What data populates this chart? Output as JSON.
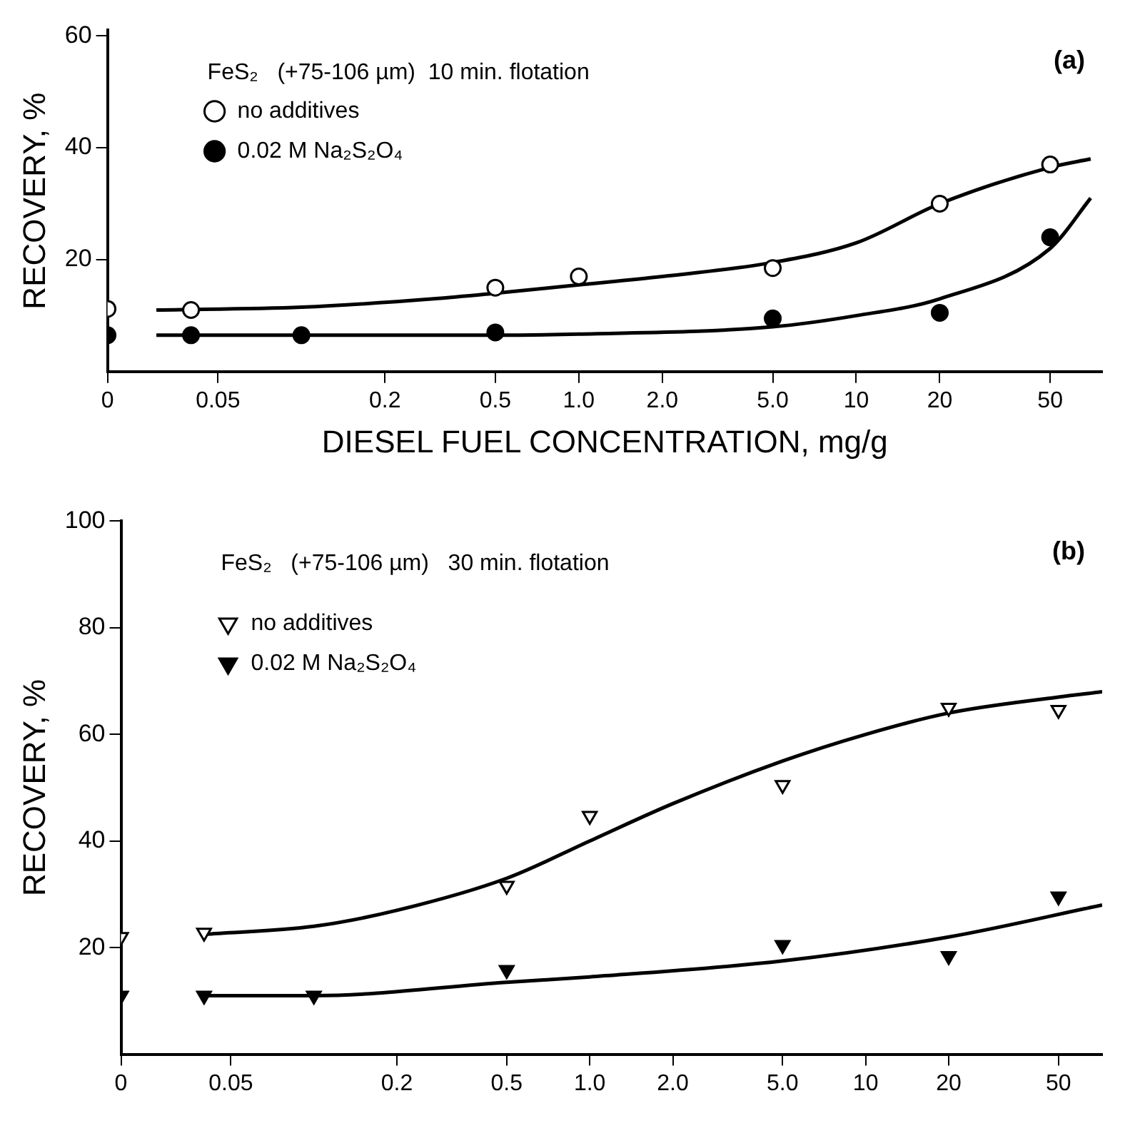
{
  "chart_data": [
    {
      "type": "scatter",
      "xlabel": "DIESEL FUEL CONCENTRATION, mg/g",
      "ylabel": "RECOVERY, %",
      "log": "x",
      "grid": false,
      "legend": "top left",
      "annotations": [
        "FeS₂   (+75-106 µm)  10 min. flotation",
        "(a)"
      ],
      "xlim": [
        0.02,
        77
      ],
      "ylim": [
        0,
        61
      ],
      "xticks": [
        {
          "value": 0.02,
          "label": "0"
        },
        0.05,
        0.2,
        0.5,
        {
          "value": 1,
          "label": "1.0"
        },
        {
          "value": 2,
          "label": "2.0"
        },
        {
          "value": 5,
          "label": "5.0"
        },
        10,
        20,
        50
      ],
      "yticks": [
        20,
        40,
        60
      ],
      "series": [
        {
          "name": "no additives",
          "type": "scatter",
          "marker": "circle",
          "color": "#ffffff",
          "x": [
            0.02,
            0.04,
            0.5,
            1,
            5,
            20,
            50
          ],
          "values": [
            11.2,
            11,
            15,
            17,
            18.5,
            30,
            37
          ]
        },
        {
          "name": "0.02 M Na₂S₂O₄",
          "type": "scatter",
          "marker": "circle",
          "color": "#000000",
          "x": [
            0.02,
            0.04,
            0.1,
            0.5,
            5,
            20,
            50
          ],
          "values": [
            6.5,
            6.5,
            6.5,
            7,
            9.5,
            10.5,
            24
          ]
        },
        {
          "type": "line",
          "marker": "none",
          "color": "#000000",
          "x": [
            0.03,
            0.1,
            0.3,
            0.5,
            1,
            2,
            5,
            10,
            20,
            50,
            70
          ],
          "values": [
            11,
            11.5,
            13,
            14,
            15.5,
            17,
            19.5,
            23,
            30,
            36.5,
            38
          ]
        },
        {
          "type": "line",
          "marker": "none",
          "color": "#000000",
          "x": [
            0.03,
            0.5,
            1,
            5,
            10,
            20,
            50,
            70
          ],
          "values": [
            6.5,
            6.5,
            6.7,
            8,
            10,
            13,
            22,
            31
          ]
        }
      ]
    },
    {
      "type": "scatter",
      "ylabel": "RECOVERY, %",
      "log": "x",
      "grid": false,
      "legend": "top left",
      "annotations": [
        "FeS₂   (+75-106 µm)   30 min. flotation",
        "(b)"
      ],
      "xlim": [
        0.02,
        72
      ],
      "ylim": [
        0,
        100
      ],
      "xticks": [
        {
          "value": 0.02,
          "label": "0"
        },
        0.05,
        0.2,
        0.5,
        {
          "value": 1,
          "label": "1.0"
        },
        {
          "value": 2,
          "label": "2.0"
        },
        {
          "value": 5,
          "label": "5.0"
        },
        10,
        20,
        50
      ],
      "yticks": [
        20,
        40,
        60,
        80,
        100
      ],
      "series": [
        {
          "name": "no additives",
          "type": "scatter",
          "marker": "triangle",
          "color": "#ffffff",
          "x": [
            0.02,
            0.04,
            0.5,
            1,
            5,
            20,
            50
          ],
          "values": [
            22,
            22.8,
            31.6,
            44.7,
            50.5,
            65,
            64.6
          ]
        },
        {
          "name": "0.02 M Na₂S₂O₄",
          "type": "scatter",
          "marker": "triangle",
          "color": "#000000",
          "x": [
            0.02,
            0.04,
            0.1,
            0.5,
            5,
            20,
            50
          ],
          "values": [
            11,
            11,
            11,
            15.8,
            20.5,
            18.4,
            29.6
          ]
        },
        {
          "type": "line",
          "marker": "none",
          "color": "#000000",
          "x": [
            0.04,
            0.1,
            0.2,
            0.5,
            1,
            2,
            5,
            10,
            20,
            50,
            72
          ],
          "values": [
            22.5,
            24,
            27,
            33,
            40,
            47,
            55,
            60,
            64,
            67,
            68
          ]
        },
        {
          "type": "line",
          "marker": "none",
          "color": "#000000",
          "x": [
            0.04,
            0.1,
            0.5,
            1,
            5,
            20,
            72
          ],
          "values": [
            11,
            11,
            13.5,
            14.5,
            17.5,
            22,
            28
          ]
        }
      ]
    }
  ]
}
